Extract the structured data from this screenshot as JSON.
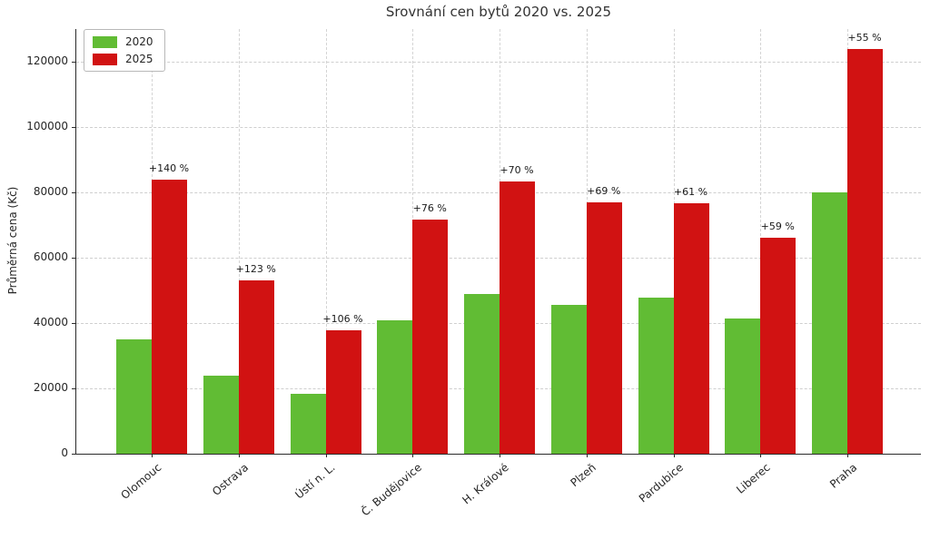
{
  "chart_data": {
    "type": "bar",
    "title": "Srovnání cen bytů 2020 vs. 2025",
    "xlabel": "",
    "ylabel": "Průměrná cena (Kč)",
    "categories": [
      "Olomouc",
      "Ostrava",
      "Ústí n. L.",
      "Č. Budějovice",
      "H. Králové",
      "Plzeň",
      "Pardubice",
      "Liberec",
      "Praha"
    ],
    "series": [
      {
        "name": "2020",
        "color": "#61bc34",
        "values": [
          35000,
          23800,
          18400,
          40700,
          49000,
          45500,
          47700,
          41500,
          80000
        ]
      },
      {
        "name": "2025",
        "color": "#d11212",
        "values": [
          84000,
          53000,
          37900,
          71600,
          83300,
          76900,
          76800,
          66000,
          124000
        ]
      }
    ],
    "annotations": [
      "+140 %",
      "+123 %",
      "+106 %",
      "+76 %",
      "+70 %",
      "+69 %",
      "+61 %",
      "+59 %",
      "+55 %"
    ],
    "yticks": [
      0,
      20000,
      40000,
      60000,
      80000,
      100000,
      120000
    ],
    "ylim": [
      0,
      130000
    ],
    "grid": true,
    "grid_style": "dashed",
    "legend_position": "upper left",
    "colors": {
      "series_2020": "#61bc34",
      "series_2025": "#d11212",
      "gridline": "#cfcfcf",
      "spine": "#2b2b2b",
      "text": "#262626"
    }
  }
}
